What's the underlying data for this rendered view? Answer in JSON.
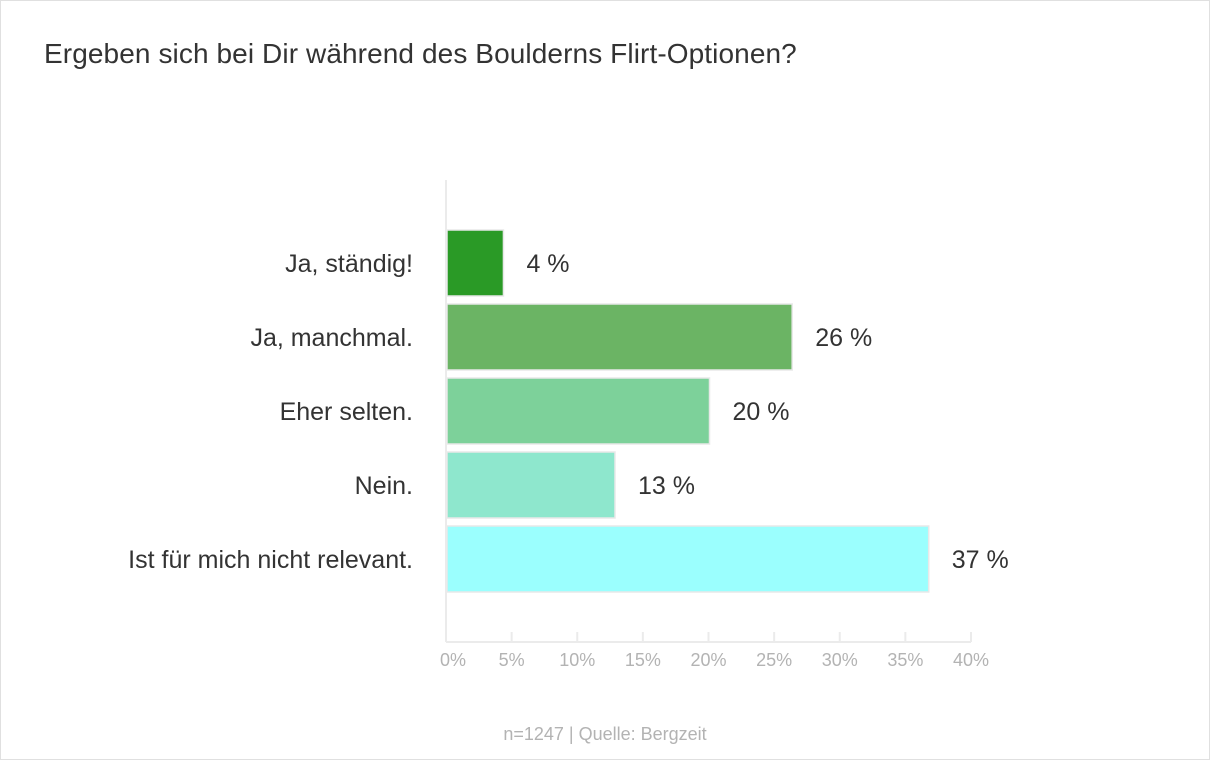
{
  "chart_data": {
    "type": "bar",
    "orientation": "horizontal",
    "title": "Ergeben sich bei Dir während des Boulderns Flirt-Optionen?",
    "categories": [
      "Ja, ständig!",
      "Ja, manchmal.",
      "Eher selten.",
      "Nein.",
      "Ist für mich nicht relevant."
    ],
    "values": [
      4.3,
      26.3,
      20.0,
      12.8,
      36.7
    ],
    "value_labels": [
      "4 %",
      "26 %",
      "20 %",
      "13 %",
      "37 %"
    ],
    "colors": [
      "#2a9a26",
      "#6bb464",
      "#7dd19a",
      "#8ee7cd",
      "#9bfffe"
    ],
    "xlabel": "",
    "ylabel": "",
    "xlim": [
      0,
      40
    ],
    "x_ticks": [
      0,
      5,
      10,
      15,
      20,
      25,
      30,
      35,
      40
    ],
    "x_tick_labels": [
      "0%",
      "5%",
      "10%",
      "15%",
      "20%",
      "25%",
      "30%",
      "35%",
      "40%"
    ],
    "grid": false,
    "legend": "none"
  },
  "footer": "n=1247 | Quelle: Bergzeit"
}
